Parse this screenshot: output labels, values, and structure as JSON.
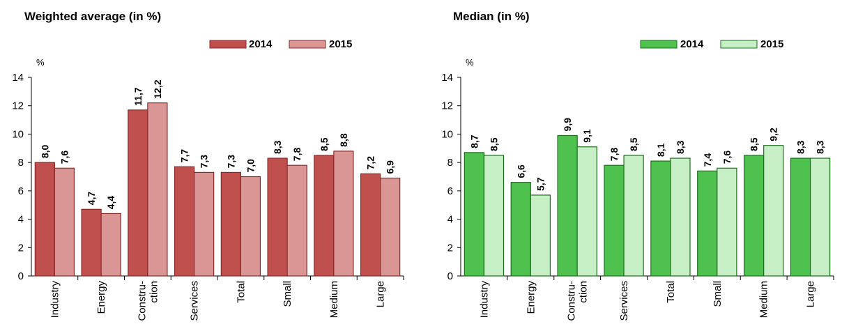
{
  "chart_data": [
    {
      "type": "bar",
      "title": "Weighted average (in %)",
      "ylabel": "%",
      "ylim": [
        0,
        14
      ],
      "yticks": [
        0,
        2,
        4,
        6,
        8,
        10,
        12,
        14
      ],
      "categories": [
        [
          "Industry"
        ],
        [
          "Energy"
        ],
        [
          "Constru-",
          "ction"
        ],
        [
          "Services"
        ],
        [
          "Total"
        ],
        [
          "Small"
        ],
        [
          "Medium"
        ],
        [
          "Large"
        ]
      ],
      "series": [
        {
          "name": "2014",
          "color": "#c0504d",
          "stroke": "#8b2a2a",
          "values": [
            8.0,
            4.7,
            11.7,
            7.7,
            7.3,
            8.3,
            8.5,
            7.2
          ],
          "labels": [
            "8,0",
            "4,7",
            "11,7",
            "7,7",
            "7,3",
            "8,3",
            "8,5",
            "7,2"
          ]
        },
        {
          "name": "2015",
          "color": "#d99694",
          "stroke": "#8b2a2a",
          "values": [
            7.6,
            4.4,
            12.2,
            7.3,
            7.0,
            7.8,
            8.8,
            6.9
          ],
          "labels": [
            "7,6",
            "4,4",
            "12,2",
            "7,3",
            "7,0",
            "7,8",
            "8,8",
            "6,9"
          ]
        }
      ],
      "legend": "top-right",
      "grid": false
    },
    {
      "type": "bar",
      "title": "Median (in %)",
      "ylabel": "%",
      "ylim": [
        0,
        14
      ],
      "yticks": [
        0,
        2,
        4,
        6,
        8,
        10,
        12,
        14
      ],
      "categories": [
        [
          "Industry"
        ],
        [
          "Energy"
        ],
        [
          "Constru-",
          "ction"
        ],
        [
          "Services"
        ],
        [
          "Total"
        ],
        [
          "Small"
        ],
        [
          "Medium"
        ],
        [
          "Large"
        ]
      ],
      "series": [
        {
          "name": "2014",
          "color": "#4fc14f",
          "stroke": "#1e6e1e",
          "values": [
            8.7,
            6.6,
            9.9,
            7.8,
            8.1,
            7.4,
            8.5,
            8.3
          ],
          "labels": [
            "8,7",
            "6,6",
            "9,9",
            "7,8",
            "8,1",
            "7,4",
            "8,5",
            "8,3"
          ]
        },
        {
          "name": "2015",
          "color": "#c6efc6",
          "stroke": "#1e6e1e",
          "values": [
            8.5,
            5.7,
            9.1,
            8.5,
            8.3,
            7.6,
            9.2,
            8.3
          ],
          "labels": [
            "8,5",
            "5,7",
            "9,1",
            "8,5",
            "8,3",
            "7,6",
            "9,2",
            "8,3"
          ]
        }
      ],
      "legend": "top-right",
      "grid": false
    }
  ]
}
